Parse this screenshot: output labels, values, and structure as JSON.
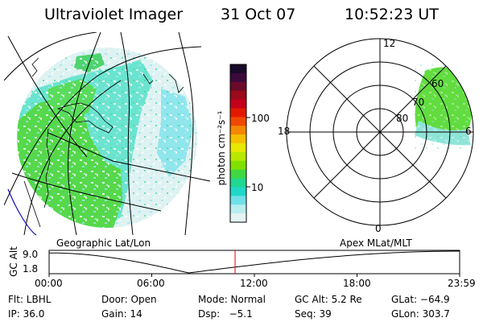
{
  "header": {
    "title": "Ultraviolet Imager",
    "date": "31 Oct 07",
    "time": "10:52:23 UT"
  },
  "geo_panel": {
    "label": "Geographic Lat/Lon"
  },
  "polar_panel": {
    "label": "Apex MLat/MLT",
    "mlt_labels": [
      "12",
      "18",
      "6",
      "0"
    ],
    "lat_labels": [
      "60",
      "70",
      "80"
    ]
  },
  "colorbar": {
    "unit_label": "photon cm⁻²s⁻¹",
    "ticks": [
      "100",
      "10"
    ],
    "colors": [
      "#1a0a2a",
      "#3a0a3a",
      "#6a0a2a",
      "#9a0a1a",
      "#c4001a",
      "#e41a00",
      "#f04800",
      "#f48800",
      "#f4c000",
      "#e8e800",
      "#b8e800",
      "#80e000",
      "#40d840",
      "#20d890",
      "#20d8c8",
      "#70e0e8",
      "#b8eef0",
      "#e4f4f4"
    ]
  },
  "alt_plot": {
    "ylabel": "GC Alt",
    "yticks": [
      "9.0",
      "1.8"
    ],
    "xticks": [
      "00:00",
      "06:00",
      "12:00",
      "18:00",
      "23:59"
    ],
    "current_time_fraction": 0.453
  },
  "status": {
    "row1": [
      {
        "key": "flt",
        "text": "Flt: LBHL"
      },
      {
        "key": "door",
        "text": "Door: Open"
      },
      {
        "key": "mode",
        "text": "Mode: Normal"
      },
      {
        "key": "gcalt",
        "text": "GC Alt: 5.2 Re"
      },
      {
        "key": "glat",
        "text": "GLat: −64.9"
      }
    ],
    "row2": [
      {
        "key": "ip",
        "text": "IP: 36.0"
      },
      {
        "key": "gain",
        "text": "Gain: 14"
      },
      {
        "key": "dsp",
        "text": "Dsp:   −5.1"
      },
      {
        "key": "seq",
        "text": "Seq: 39"
      },
      {
        "key": "glon",
        "text": "GLon: 303.7"
      }
    ]
  }
}
